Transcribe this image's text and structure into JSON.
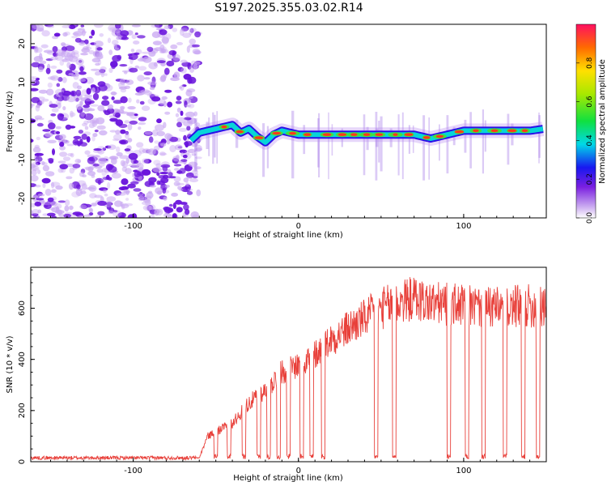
{
  "title": "S197.2025.355.03.02.R14",
  "chart_data": [
    {
      "type": "heatmap",
      "name": "spectrogram",
      "xlabel": "Height of straight line (km)",
      "ylabel": "Frequency (Hz)",
      "xlim": [
        -162,
        150
      ],
      "ylim": [
        -25,
        25
      ],
      "xticks": [
        -100,
        0,
        100
      ],
      "yticks": [
        -20,
        -10,
        0,
        10,
        20
      ],
      "colorbar": {
        "label": "Normalized spectral amplitude",
        "range": [
          0,
          1
        ],
        "ticks": [
          0.0,
          0.2,
          0.4,
          0.6,
          0.8
        ]
      },
      "noise_region_x": [
        -162,
        -65
      ],
      "ridge": {
        "x": [
          -65,
          -60,
          -55,
          -50,
          -45,
          -40,
          -35,
          -30,
          -25,
          -20,
          -15,
          -10,
          -5,
          0,
          10,
          20,
          30,
          40,
          50,
          60,
          70,
          80,
          90,
          100,
          110,
          120,
          130,
          140,
          148
        ],
        "freq_hz": [
          -5,
          -3,
          -2.5,
          -2,
          -1.5,
          -1,
          -3,
          -2,
          -4,
          -5.5,
          -3.5,
          -2.5,
          -3,
          -3.5,
          -3.5,
          -3.5,
          -3.5,
          -3.5,
          -3.5,
          -3.5,
          -3.5,
          -4.5,
          -3.5,
          -2.5,
          -2.5,
          -2.5,
          -2.5,
          -2.5,
          -2
        ]
      }
    },
    {
      "type": "line",
      "name": "snr",
      "xlabel": "Height of straight line (km)",
      "ylabel": "SNR (10 * v/v)",
      "xlim": [
        -162,
        150
      ],
      "ylim": [
        0,
        760
      ],
      "xticks": [
        -100,
        0,
        100
      ],
      "yticks": [
        0,
        200,
        400,
        600
      ],
      "color": "#e8403a",
      "trend": {
        "x": [
          -162,
          -60,
          -55,
          -40,
          -30,
          -20,
          -10,
          0,
          10,
          20,
          30,
          40,
          50,
          60,
          70,
          80,
          100,
          120,
          140,
          150
        ],
        "snr": [
          15,
          15,
          100,
          150,
          230,
          280,
          350,
          380,
          420,
          480,
          520,
          560,
          600,
          620,
          640,
          620,
          610,
          600,
          610,
          600
        ]
      },
      "dropouts_x": [
        -50,
        -42,
        -33,
        -24,
        -18,
        -12,
        -6,
        2,
        8,
        15,
        47,
        58,
        91,
        102,
        112,
        125,
        136,
        145
      ]
    }
  ]
}
